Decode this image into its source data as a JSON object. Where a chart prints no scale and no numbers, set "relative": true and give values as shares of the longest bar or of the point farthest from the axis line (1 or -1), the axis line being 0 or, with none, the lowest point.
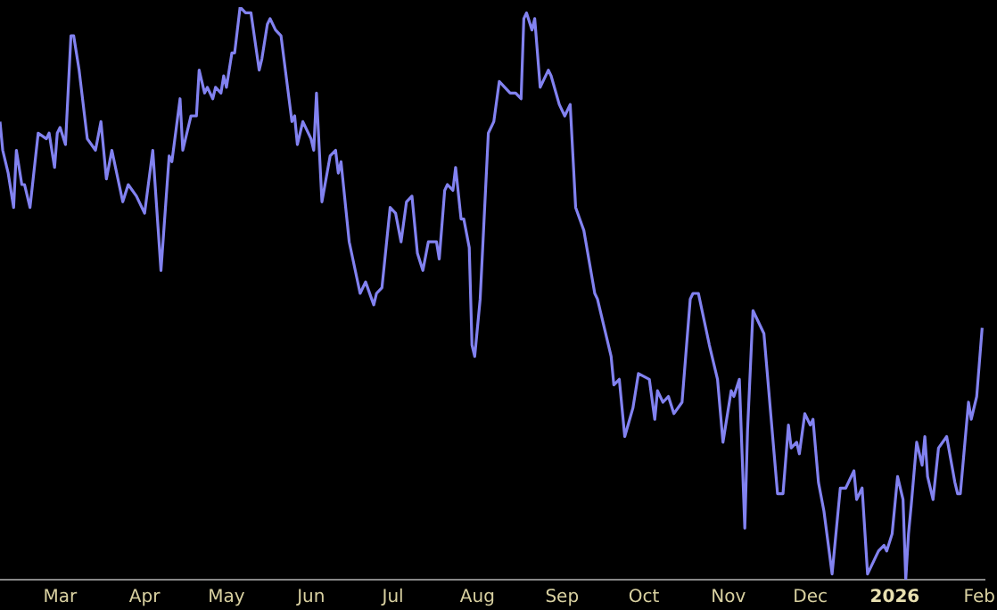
{
  "chart_data": {
    "type": "line",
    "relative": true,
    "grid": false,
    "legend": false,
    "marker": "none",
    "line_style": "solid",
    "xlim": [
      "2025-02-07",
      "2026-02-03"
    ],
    "xticks": [
      {
        "value": "2025-03-01",
        "label": "Mar"
      },
      {
        "value": "2025-04-01",
        "label": "Apr"
      },
      {
        "value": "2025-05-01",
        "label": "May"
      },
      {
        "value": "2025-06-01",
        "label": "Jun"
      },
      {
        "value": "2025-07-01",
        "label": "Jul"
      },
      {
        "value": "2025-08-01",
        "label": "Aug"
      },
      {
        "value": "2025-09-01",
        "label": "Sep"
      },
      {
        "value": "2025-10-01",
        "label": "Oct"
      },
      {
        "value": "2025-11-01",
        "label": "Nov"
      },
      {
        "value": "2025-12-01",
        "label": "Dec"
      },
      {
        "value": "2026-01-01",
        "label": "2026"
      },
      {
        "value": "2026-02-01",
        "label": "Feb"
      }
    ],
    "x": [
      "2025-02-07",
      "2025-02-08",
      "2025-02-10",
      "2025-02-12",
      "2025-02-13",
      "2025-02-15",
      "2025-02-16",
      "2025-02-18",
      "2025-02-21",
      "2025-02-24",
      "2025-02-25",
      "2025-02-27",
      "2025-02-28",
      "2025-03-01",
      "2025-03-03",
      "2025-03-05",
      "2025-03-06",
      "2025-03-08",
      "2025-03-11",
      "2025-03-14",
      "2025-03-16",
      "2025-03-18",
      "2025-03-20",
      "2025-03-24",
      "2025-03-26",
      "2025-03-29",
      "2025-04-01",
      "2025-04-04",
      "2025-04-07",
      "2025-04-10",
      "2025-04-11",
      "2025-04-14",
      "2025-04-15",
      "2025-04-18",
      "2025-04-20",
      "2025-04-21",
      "2025-04-23",
      "2025-04-24",
      "2025-04-26",
      "2025-04-27",
      "2025-04-29",
      "2025-04-30",
      "2025-05-01",
      "2025-05-03",
      "2025-05-04",
      "2025-05-06",
      "2025-05-08",
      "2025-05-10",
      "2025-05-13",
      "2025-05-14",
      "2025-05-16",
      "2025-05-17",
      "2025-05-19",
      "2025-05-21",
      "2025-05-25",
      "2025-05-26",
      "2025-05-27",
      "2025-05-29",
      "2025-06-01",
      "2025-06-02",
      "2025-06-03",
      "2025-06-05",
      "2025-06-08",
      "2025-06-10",
      "2025-06-11",
      "2025-06-12",
      "2025-06-15",
      "2025-06-19",
      "2025-06-21",
      "2025-06-24",
      "2025-06-25",
      "2025-06-27",
      "2025-06-30",
      "2025-07-02",
      "2025-07-04",
      "2025-07-06",
      "2025-07-08",
      "2025-07-10",
      "2025-07-12",
      "2025-07-14",
      "2025-07-17",
      "2025-07-18",
      "2025-07-20",
      "2025-07-21",
      "2025-07-23",
      "2025-07-24",
      "2025-07-26",
      "2025-07-27",
      "2025-07-29",
      "2025-07-30",
      "2025-07-31",
      "2025-08-02",
      "2025-08-05",
      "2025-08-07",
      "2025-08-09",
      "2025-08-11",
      "2025-08-13",
      "2025-08-15",
      "2025-08-17",
      "2025-08-18",
      "2025-08-19",
      "2025-08-21",
      "2025-08-22",
      "2025-08-24",
      "2025-08-27",
      "2025-08-28",
      "2025-08-31",
      "2025-09-02",
      "2025-09-04",
      "2025-09-06",
      "2025-09-09",
      "2025-09-13",
      "2025-09-14",
      "2025-09-19",
      "2025-09-20",
      "2025-09-22",
      "2025-09-24",
      "2025-09-27",
      "2025-09-29",
      "2025-10-03",
      "2025-10-05",
      "2025-10-06",
      "2025-10-08",
      "2025-10-10",
      "2025-10-12",
      "2025-10-15",
      "2025-10-18",
      "2025-10-19",
      "2025-10-21",
      "2025-10-25",
      "2025-10-28",
      "2025-10-30",
      "2025-11-02",
      "2025-11-03",
      "2025-11-05",
      "2025-11-07",
      "2025-11-08",
      "2025-11-10",
      "2025-11-14",
      "2025-11-19",
      "2025-11-21",
      "2025-11-23",
      "2025-11-24",
      "2025-11-26",
      "2025-11-27",
      "2025-11-29",
      "2025-12-01",
      "2025-12-02",
      "2025-12-04",
      "2025-12-06",
      "2025-12-09",
      "2025-12-12",
      "2025-12-14",
      "2025-12-17",
      "2025-12-18",
      "2025-12-20",
      "2025-12-22",
      "2025-12-26",
      "2025-12-28",
      "2025-12-29",
      "2025-12-31",
      "2026-01-02",
      "2026-01-04",
      "2026-01-05",
      "2026-01-06",
      "2026-01-07",
      "2026-01-09",
      "2026-01-11",
      "2026-01-12",
      "2026-01-13",
      "2026-01-15",
      "2026-01-17",
      "2026-01-20",
      "2026-01-23",
      "2026-01-24",
      "2026-01-25",
      "2026-01-28",
      "2026-01-29",
      "2026-01-31",
      "2026-02-02"
    ],
    "series": [
      {
        "color": "#8282f0",
        "values": [
          0.8,
          0.75,
          0.71,
          0.65,
          0.75,
          0.69,
          0.69,
          0.65,
          0.78,
          0.77,
          0.78,
          0.72,
          0.78,
          0.79,
          0.76,
          0.95,
          0.95,
          0.89,
          0.77,
          0.75,
          0.8,
          0.7,
          0.75,
          0.66,
          0.69,
          0.67,
          0.64,
          0.75,
          0.54,
          0.74,
          0.73,
          0.84,
          0.75,
          0.81,
          0.81,
          0.89,
          0.85,
          0.86,
          0.84,
          0.86,
          0.85,
          0.88,
          0.86,
          0.92,
          0.92,
          1,
          0.99,
          0.99,
          0.89,
          0.91,
          0.97,
          0.98,
          0.96,
          0.95,
          0.8,
          0.81,
          0.76,
          0.8,
          0.77,
          0.75,
          0.85,
          0.66,
          0.74,
          0.75,
          0.71,
          0.73,
          0.59,
          0.5,
          0.52,
          0.48,
          0.5,
          0.51,
          0.65,
          0.64,
          0.59,
          0.66,
          0.67,
          0.57,
          0.54,
          0.59,
          0.59,
          0.56,
          0.68,
          0.69,
          0.68,
          0.72,
          0.63,
          0.63,
          0.58,
          0.41,
          0.39,
          0.49,
          0.78,
          0.8,
          0.87,
          0.86,
          0.85,
          0.85,
          0.84,
          0.98,
          0.99,
          0.96,
          0.98,
          0.86,
          0.89,
          0.88,
          0.83,
          0.81,
          0.83,
          0.65,
          0.61,
          0.5,
          0.49,
          0.39,
          0.34,
          0.35,
          0.25,
          0.3,
          0.36,
          0.35,
          0.28,
          0.33,
          0.31,
          0.32,
          0.29,
          0.31,
          0.49,
          0.5,
          0.5,
          0.41,
          0.35,
          0.24,
          0.33,
          0.32,
          0.35,
          0.09,
          0.26,
          0.47,
          0.43,
          0.15,
          0.15,
          0.27,
          0.23,
          0.24,
          0.22,
          0.29,
          0.27,
          0.28,
          0.17,
          0.12,
          0.01,
          0.16,
          0.16,
          0.19,
          0.14,
          0.16,
          0.01,
          0.05,
          0.06,
          0.05,
          0.08,
          0.18,
          0.14,
          0,
          0.08,
          0.13,
          0.24,
          0.2,
          0.25,
          0.18,
          0.14,
          0.23,
          0.25,
          0.17,
          0.15,
          0.15,
          0.31,
          0.28,
          0.32,
          0.44
        ]
      }
    ]
  }
}
